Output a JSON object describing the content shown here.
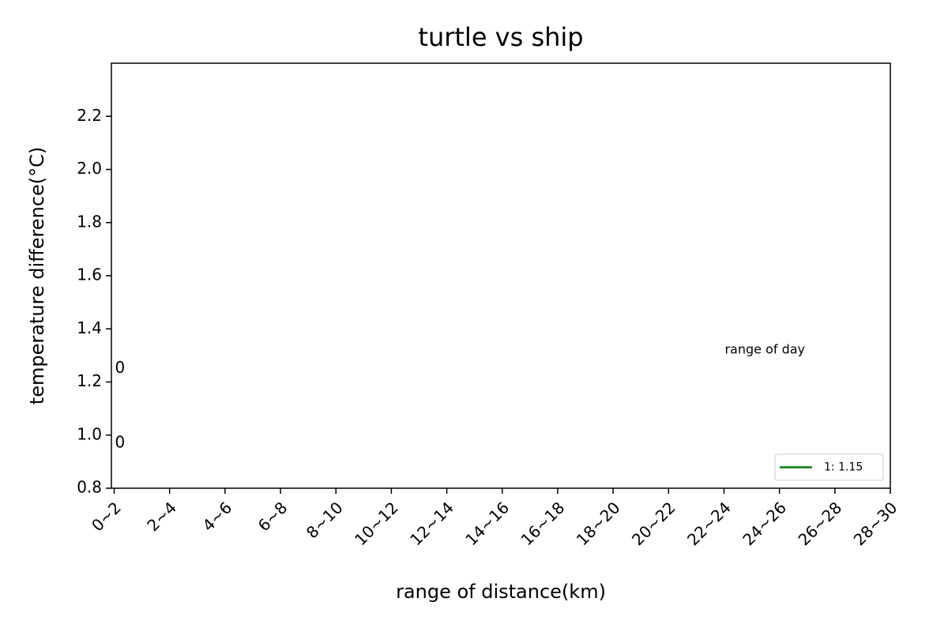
{
  "chart_data": {
    "type": "line",
    "title": "turtle vs ship",
    "xlabel": "range of distance(km)",
    "ylabel": "temperature difference(°C)",
    "categories": [
      "0~2",
      "2~4",
      "4~6",
      "6~8",
      "8~10",
      "10~12",
      "12~14",
      "14~16",
      "16~18",
      "18~20",
      "20~22",
      "22~24",
      "24~26",
      "26~28",
      "28~30"
    ],
    "xlim": [
      -0.05,
      14
    ],
    "series": [
      {
        "name": "1: 1.15",
        "color": "#008000",
        "values": [
          null,
          null,
          null,
          null,
          null,
          null,
          null,
          null,
          null,
          null,
          null,
          null,
          null,
          null,
          null
        ]
      }
    ],
    "ylim": [
      0.8,
      2.4
    ],
    "yticks": [
      0.8,
      {
        "value": 1.0,
        "label": "1.0"
      },
      1.2,
      1.4,
      1.6,
      1.8,
      {
        "value": 2.0,
        "label": "2.0"
      },
      2.2
    ],
    "annotations": [
      {
        "text": "0",
        "x": 0,
        "y": 1.25,
        "color": "#0000ff"
      },
      {
        "text": "0",
        "x": 0,
        "y": 0.97,
        "color": "#008000"
      },
      {
        "text": "range of day",
        "x": 11,
        "y": 1.32,
        "color": "#000000"
      }
    ],
    "legend": "lower right",
    "grid": false
  }
}
